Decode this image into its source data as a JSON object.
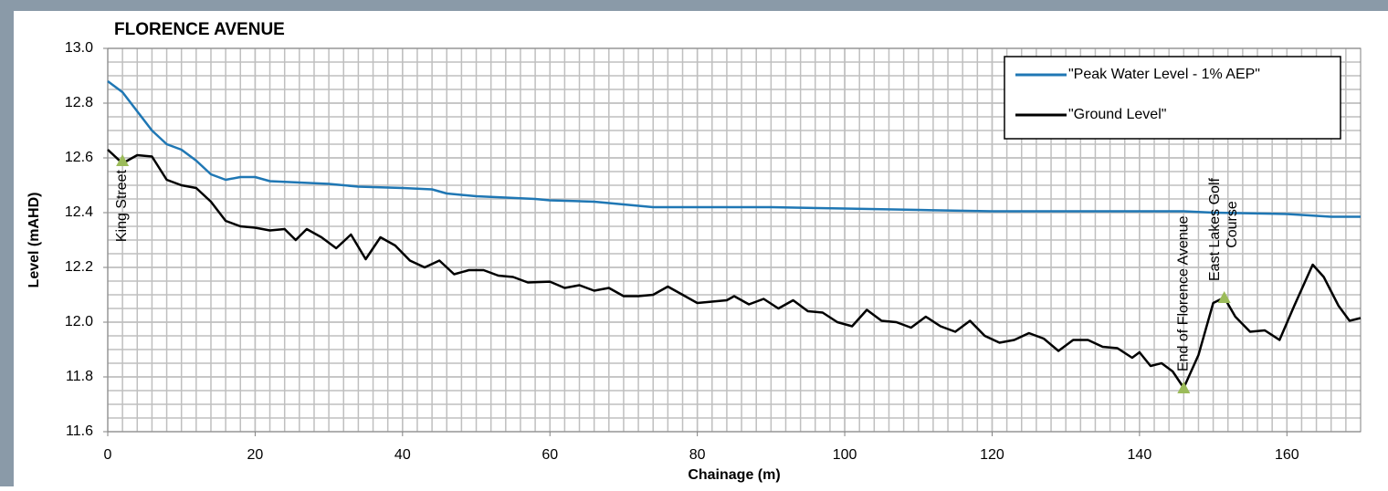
{
  "chart_data": {
    "type": "line",
    "title": "FLORENCE AVENUE",
    "x_label": "Chainage (m)",
    "y_label": "Level (mAHD)",
    "xlim": [
      0,
      170
    ],
    "xticks": [
      0,
      20,
      40,
      60,
      80,
      100,
      120,
      140,
      160
    ],
    "ylim": [
      11.6,
      13.0
    ],
    "yticks": [
      11.6,
      11.8,
      {
        "value": 12.0,
        "label": "12.0"
      },
      12.2,
      12.4,
      12.6,
      12.8,
      {
        "value": 13.0,
        "label": "13.0"
      }
    ],
    "grid": true,
    "minor_grid": {
      "x": 2,
      "y": 0.05
    },
    "legend": "upper right",
    "series": [
      {
        "name": "\"Peak Water Level - 1% AEP\"",
        "color": "#1f77b4",
        "x": [
          0,
          2,
          4,
          6,
          8,
          10,
          12,
          14,
          16,
          18,
          20,
          22,
          26,
          30,
          34,
          40,
          44,
          46,
          50,
          54,
          58,
          60,
          66,
          70,
          74,
          80,
          90,
          100,
          110,
          120,
          130,
          140,
          146,
          150,
          160,
          166,
          170
        ],
        "values": [
          12.88,
          12.84,
          12.77,
          12.7,
          12.65,
          12.63,
          12.59,
          12.54,
          12.52,
          12.53,
          12.53,
          12.515,
          12.51,
          12.505,
          12.495,
          12.49,
          12.485,
          12.47,
          12.46,
          12.455,
          12.45,
          12.445,
          12.44,
          12.43,
          12.42,
          12.42,
          12.42,
          12.415,
          12.41,
          12.405,
          12.405,
          12.405,
          12.405,
          12.4,
          12.395,
          12.385,
          12.385
        ]
      },
      {
        "name": "\"Ground Level\"",
        "color": "#000000",
        "x": [
          0,
          2,
          4,
          6,
          8,
          10,
          12,
          14,
          16,
          18,
          20,
          22,
          24,
          25.5,
          27,
          29,
          31,
          33,
          35,
          37,
          39,
          41,
          43,
          45,
          47,
          49,
          51,
          53,
          55,
          57,
          60,
          62,
          64,
          66,
          68,
          70,
          72,
          74,
          76,
          78,
          80,
          82,
          84,
          85,
          87,
          89,
          91,
          93,
          95,
          97,
          99,
          101,
          103,
          105,
          107,
          109,
          111,
          113,
          115,
          117,
          119,
          121,
          123,
          125,
          127,
          129,
          131,
          133,
          135,
          137,
          139,
          140,
          141.5,
          143,
          144.5,
          146,
          148,
          150,
          151.5,
          153,
          155,
          157,
          159,
          161,
          163.5,
          165,
          167,
          168.5,
          170
        ],
        "values": [
          12.63,
          12.58,
          12.61,
          12.605,
          12.52,
          12.5,
          12.49,
          12.44,
          12.37,
          12.35,
          12.345,
          12.335,
          12.34,
          12.3,
          12.34,
          12.31,
          12.27,
          12.32,
          12.23,
          12.31,
          12.28,
          12.225,
          12.2,
          12.225,
          12.175,
          12.19,
          12.19,
          12.17,
          12.165,
          12.145,
          12.148,
          12.125,
          12.135,
          12.115,
          12.125,
          12.095,
          12.095,
          12.1,
          12.13,
          12.1,
          12.07,
          12.075,
          12.08,
          12.095,
          12.065,
          12.085,
          12.05,
          12.08,
          12.04,
          12.035,
          12.0,
          11.985,
          12.045,
          12.005,
          12.0,
          11.98,
          12.02,
          11.985,
          11.965,
          12.005,
          11.95,
          11.925,
          11.935,
          11.96,
          11.94,
          11.895,
          11.935,
          11.935,
          11.91,
          11.905,
          11.87,
          11.89,
          11.84,
          11.85,
          11.82,
          11.76,
          11.88,
          12.07,
          12.09,
          12.02,
          11.965,
          11.97,
          11.935,
          12.06,
          12.21,
          12.165,
          12.06,
          12.005,
          12.015
        ]
      }
    ],
    "annotations": [
      {
        "x": 2,
        "y": 12.59,
        "label": [
          "King Street"
        ]
      },
      {
        "x": 146,
        "y": 11.76,
        "label": [
          "End of Florence Avenue"
        ]
      },
      {
        "x": 151.5,
        "y": 12.09,
        "label": [
          "East Lakes Golf",
          "Course"
        ]
      }
    ],
    "annotation_color": "#9bbb59"
  }
}
